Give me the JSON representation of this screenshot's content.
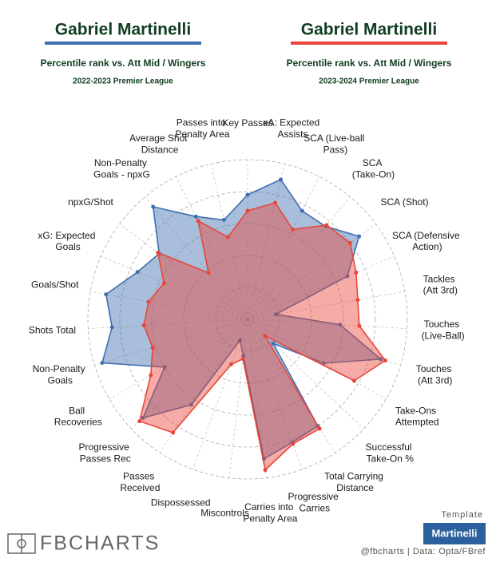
{
  "chart_data": {
    "type": "radar",
    "title": "Gabriel Martinelli",
    "subtitle": "Percentile rank vs. Att Mid / Wingers",
    "categories": [
      "Key Passes",
      "xA: Expected Assists",
      "SCA (Live-ball Pass)",
      "SCA (Take-On)",
      "SCA (Shot)",
      "SCA (Defensive Action)",
      "Tackles (Att 3rd)",
      "Touches (Live-Ball)",
      "Touches (Att 3rd)",
      "Take-Ons Attempted",
      "Successful Take-On %",
      "Total Carrying Distance",
      "Progressive Carries",
      "Carries into Penalty Area",
      "Miscontrols",
      "Dispossessed",
      "Passes Received",
      "Progressive Passes Rec",
      "Ball Recoveries",
      "Non-Penalty Goals",
      "Shots Total",
      "Goals/Shot",
      "xG: Expected Goals",
      "npxG/Shot",
      "Non-Penalty Goals - npxG",
      "Average Shot Distance",
      "Passes into Penalty Area"
    ],
    "series": [
      {
        "name": "2022-2023 Premier League",
        "color": "#3f6fb0",
        "values": [
          78,
          90,
          76,
          76,
          87,
          68,
          18,
          58,
          87,
          55,
          22,
          80,
          82,
          88,
          23,
          14,
          64,
          90,
          60,
          95,
          85,
          90,
          75,
          69,
          92,
          72,
          64
        ]
      },
      {
        "name": "2023-2024 Premier League",
        "color": "#e8463a",
        "values": [
          68,
          75,
          63,
          77,
          80,
          74,
          70,
          70,
          90,
          77,
          15,
          82,
          83,
          95,
          25,
          30,
          85,
          93,
          70,
          62,
          65,
          63,
          57,
          70,
          38,
          69,
          53
        ]
      }
    ],
    "rlim": [
      0,
      100
    ],
    "rticks": [
      20,
      40,
      60,
      80,
      100
    ],
    "template_label": "Template",
    "template_name": "Martinelli",
    "brand": "FBCHARTS",
    "credit": "@fbcharts | Data: Opta/FBref"
  }
}
